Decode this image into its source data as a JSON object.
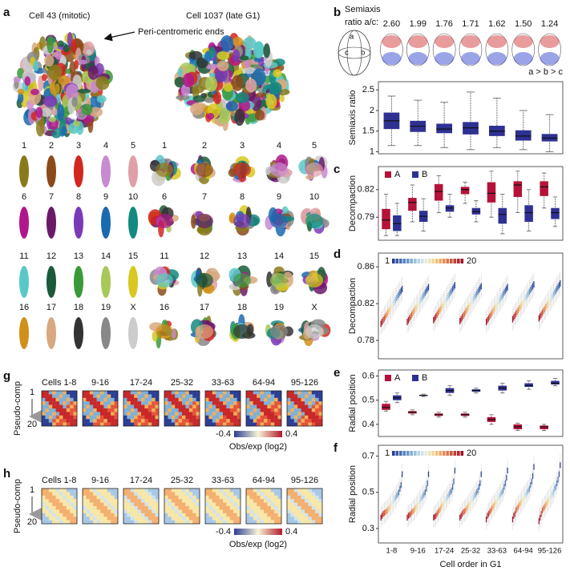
{
  "figure": {
    "panel_letters": [
      "a",
      "b",
      "c",
      "d",
      "e",
      "f",
      "g",
      "h"
    ],
    "a": {
      "left_title": "Cell 43 (mitotic)",
      "right_title": "Cell 1037 (late G1)",
      "annotation": "Peri-centromeric ends",
      "chromosome_labels": [
        "1",
        "2",
        "3",
        "4",
        "5",
        "6",
        "7",
        "8",
        "9",
        "10",
        "11",
        "12",
        "13",
        "14",
        "15",
        "16",
        "17",
        "18",
        "19",
        "X"
      ]
    },
    "b": {
      "label_lines": [
        "Semiaxis",
        "ratio a/c:"
      ],
      "ratios": [
        {
          "value": 2.6,
          "label": "2.60"
        },
        1.99,
        1.76,
        1.71,
        1.62,
        {
          "value": 1.5,
          "label": "1.50"
        },
        1.24
      ],
      "axis_labels": [
        "a",
        "b",
        "c"
      ],
      "order_note": "a > b > c"
    },
    "g": {
      "columns": [
        "Cells 1-8",
        "9-16",
        "17-24",
        "25-32",
        "33-63",
        "64-94",
        "95-126"
      ],
      "y_label": "Pseudo-comp",
      "y_ends": [
        1,
        20
      ],
      "colorbar_ticks": [
        -0.4,
        0.4
      ],
      "colorbar_label": "Obs/exp (log2)"
    },
    "h": {
      "columns": [
        "Cells 1-8",
        "9-16",
        "17-24",
        "25-32",
        "33-63",
        "64-94",
        "95-126"
      ],
      "y_label": "Pseudo-comp",
      "y_ends": [
        1,
        20
      ],
      "colorbar_ticks": [
        -0.4,
        0.4
      ],
      "colorbar_label": "Obs/exp (log2)"
    }
  },
  "chart_data": [
    {
      "type": "box",
      "y_label": "Semiaxis  ratio",
      "ylim": [
        0.95,
        2.7
      ],
      "yticks": [
        1,
        1.5,
        2,
        2.5
      ],
      "series": [
        {
          "color": "#2e3192",
          "whislo": [
            1.15,
            1.15,
            1.1,
            1.05,
            1.1,
            1.05,
            1.0
          ],
          "q1": [
            1.55,
            1.48,
            1.45,
            1.42,
            1.38,
            1.27,
            1.25
          ],
          "med": [
            1.75,
            1.62,
            1.55,
            1.58,
            1.5,
            1.38,
            1.33
          ],
          "q3": [
            1.95,
            1.75,
            1.68,
            1.72,
            1.63,
            1.52,
            1.43
          ],
          "whishi": [
            2.35,
            2.25,
            2.2,
            2.45,
            2.3,
            2.0,
            1.9
          ]
        }
      ]
    },
    {
      "type": "box",
      "y_label": "Decompaction",
      "ylim": [
        0.765,
        0.845
      ],
      "yticks": [
        0.79,
        0.82
      ],
      "legend": "top-left",
      "series": [
        {
          "name": "A",
          "color": "#b5123a",
          "whislo": [
            0.77,
            0.785,
            0.795,
            0.805,
            0.79,
            0.795,
            0.8
          ],
          "q1": [
            0.777,
            0.797,
            0.808,
            0.815,
            0.806,
            0.812,
            0.813
          ],
          "med": [
            0.787,
            0.806,
            0.818,
            0.82,
            0.816,
            0.825,
            0.823
          ],
          "q3": [
            0.799,
            0.811,
            0.826,
            0.823,
            0.828,
            0.829,
            0.829
          ],
          "whishi": [
            0.815,
            0.825,
            0.835,
            0.828,
            0.84,
            0.84,
            0.838
          ]
        },
        {
          "name": "B",
          "color": "#2e3192",
          "whislo": [
            0.77,
            0.775,
            0.79,
            0.785,
            0.772,
            0.775,
            0.78
          ],
          "q1": [
            0.775,
            0.785,
            0.796,
            0.793,
            0.783,
            0.785,
            0.788
          ],
          "med": [
            0.783,
            0.791,
            0.8,
            0.796,
            0.793,
            0.795,
            0.795
          ],
          "q3": [
            0.792,
            0.797,
            0.803,
            0.8,
            0.8,
            0.803,
            0.8
          ],
          "whishi": [
            0.805,
            0.81,
            0.815,
            0.808,
            0.815,
            0.82,
            0.812
          ]
        }
      ]
    },
    {
      "type": "box-ramp",
      "y_label": "Decompaction",
      "ylim": [
        0.76,
        0.875
      ],
      "yticks": [
        0.78,
        0.82,
        0.86
      ],
      "legend": "top-left",
      "ramp_labels": [
        1,
        20
      ],
      "colors": [
        "#2c3e94",
        "#3a56a5",
        "#4a6db0",
        "#5a84bc",
        "#6e99c6",
        "#86aed0",
        "#a0c2da",
        "#bad4e3",
        "#d2e3ea",
        "#e6ecdc",
        "#efe6bb",
        "#f2d79a",
        "#f1c27f",
        "#eeaa67",
        "#e79057",
        "#de754a",
        "#d05a3f",
        "#c14036",
        "#b0282f",
        "#9d1328"
      ],
      "values": [
        [
          0.836,
          0.834,
          0.832,
          0.83,
          0.828,
          0.826,
          0.824,
          0.822,
          0.82,
          0.818,
          0.816,
          0.814,
          0.812,
          0.81,
          0.808,
          0.806,
          0.804,
          0.802,
          0.8,
          0.798
        ],
        [
          0.838,
          0.836,
          0.834,
          0.832,
          0.83,
          0.828,
          0.826,
          0.824,
          0.822,
          0.82,
          0.818,
          0.816,
          0.814,
          0.812,
          0.81,
          0.808,
          0.806,
          0.804,
          0.802,
          0.8
        ],
        [
          0.84,
          0.838,
          0.836,
          0.834,
          0.832,
          0.83,
          0.828,
          0.826,
          0.824,
          0.822,
          0.82,
          0.818,
          0.816,
          0.814,
          0.812,
          0.81,
          0.808,
          0.806,
          0.804,
          0.802
        ],
        [
          0.839,
          0.837,
          0.835,
          0.833,
          0.831,
          0.829,
          0.827,
          0.825,
          0.823,
          0.821,
          0.819,
          0.817,
          0.815,
          0.813,
          0.811,
          0.809,
          0.807,
          0.805,
          0.803,
          0.801
        ],
        [
          0.838,
          0.836,
          0.834,
          0.832,
          0.83,
          0.828,
          0.826,
          0.824,
          0.822,
          0.82,
          0.818,
          0.816,
          0.814,
          0.812,
          0.81,
          0.808,
          0.806,
          0.804,
          0.802,
          0.8
        ],
        [
          0.841,
          0.839,
          0.837,
          0.835,
          0.833,
          0.831,
          0.829,
          0.827,
          0.825,
          0.823,
          0.821,
          0.819,
          0.817,
          0.815,
          0.813,
          0.811,
          0.809,
          0.807,
          0.805,
          0.803
        ],
        [
          0.842,
          0.84,
          0.838,
          0.836,
          0.834,
          0.832,
          0.83,
          0.828,
          0.826,
          0.824,
          0.822,
          0.82,
          0.818,
          0.816,
          0.814,
          0.812,
          0.81,
          0.808,
          0.806,
          0.804
        ]
      ]
    },
    {
      "type": "box",
      "y_label": "Radial position",
      "ylim": [
        0.35,
        0.625
      ],
      "yticks": [
        0.4,
        0.5,
        0.6
      ],
      "legend": "top-left",
      "series": [
        {
          "name": "A",
          "color": "#b5123a",
          "whislo": [
            0.455,
            0.44,
            0.43,
            0.43,
            0.4,
            0.375,
            0.375
          ],
          "q1": [
            0.46,
            0.445,
            0.435,
            0.435,
            0.41,
            0.38,
            0.38
          ],
          "med": [
            0.47,
            0.45,
            0.44,
            0.44,
            0.42,
            0.39,
            0.39
          ],
          "q3": [
            0.485,
            0.455,
            0.445,
            0.445,
            0.43,
            0.4,
            0.395
          ],
          "whishi": [
            0.495,
            0.46,
            0.45,
            0.45,
            0.44,
            0.405,
            0.4
          ]
        },
        {
          "name": "B",
          "color": "#2e3192",
          "whislo": [
            0.49,
            0.515,
            0.52,
            0.53,
            0.53,
            0.545,
            0.56
          ],
          "q1": [
            0.5,
            0.518,
            0.53,
            0.535,
            0.54,
            0.555,
            0.565
          ],
          "med": [
            0.51,
            0.52,
            0.54,
            0.54,
            0.55,
            0.56,
            0.57
          ],
          "q3": [
            0.52,
            0.522,
            0.55,
            0.545,
            0.56,
            0.57,
            0.58
          ],
          "whishi": [
            0.53,
            0.525,
            0.56,
            0.55,
            0.57,
            0.58,
            0.59
          ]
        }
      ]
    },
    {
      "type": "box-ramp",
      "y_label": "Radial position",
      "x_label": "Cell order in G1",
      "ylim": [
        0.22,
        0.76
      ],
      "yticks": [
        0.3,
        0.5,
        0.7
      ],
      "legend": "top-left",
      "ramp_labels": [
        1,
        20
      ],
      "categories": [
        "1-8",
        "9-16",
        "17-24",
        "25-32",
        "33-63",
        "64-94",
        "95-126"
      ],
      "colors": [
        "#2c3e94",
        "#3a56a5",
        "#4a6db0",
        "#5a84bc",
        "#6e99c6",
        "#86aed0",
        "#a0c2da",
        "#bad4e3",
        "#d2e3ea",
        "#e6ecdc",
        "#efe6bb",
        "#f2d79a",
        "#f1c27f",
        "#eeaa67",
        "#e79057",
        "#de754a",
        "#d05a3f",
        "#c14036",
        "#b0282f",
        "#9d1328"
      ],
      "values": [
        [
          0.6,
          0.54,
          0.52,
          0.5,
          0.49,
          0.48,
          0.47,
          0.46,
          0.45,
          0.44,
          0.43,
          0.42,
          0.41,
          0.4,
          0.395,
          0.39,
          0.385,
          0.38,
          0.37,
          0.36
        ],
        [
          0.6,
          0.55,
          0.52,
          0.5,
          0.49,
          0.48,
          0.47,
          0.46,
          0.45,
          0.44,
          0.43,
          0.42,
          0.41,
          0.4,
          0.395,
          0.39,
          0.38,
          0.375,
          0.37,
          0.36
        ],
        [
          0.62,
          0.56,
          0.53,
          0.51,
          0.5,
          0.49,
          0.48,
          0.47,
          0.46,
          0.45,
          0.44,
          0.43,
          0.42,
          0.41,
          0.4,
          0.39,
          0.38,
          0.37,
          0.365,
          0.36
        ],
        [
          0.6,
          0.55,
          0.53,
          0.51,
          0.5,
          0.49,
          0.48,
          0.47,
          0.46,
          0.45,
          0.44,
          0.43,
          0.42,
          0.41,
          0.4,
          0.395,
          0.39,
          0.38,
          0.37,
          0.36
        ],
        [
          0.62,
          0.58,
          0.55,
          0.53,
          0.51,
          0.5,
          0.49,
          0.48,
          0.47,
          0.46,
          0.45,
          0.44,
          0.43,
          0.42,
          0.41,
          0.4,
          0.39,
          0.38,
          0.37,
          0.35
        ],
        [
          0.64,
          0.59,
          0.56,
          0.54,
          0.52,
          0.51,
          0.5,
          0.49,
          0.48,
          0.47,
          0.46,
          0.45,
          0.44,
          0.43,
          0.42,
          0.41,
          0.4,
          0.38,
          0.37,
          0.35
        ],
        [
          0.65,
          0.6,
          0.57,
          0.55,
          0.53,
          0.52,
          0.5,
          0.49,
          0.48,
          0.47,
          0.46,
          0.45,
          0.44,
          0.43,
          0.42,
          0.41,
          0.4,
          0.38,
          0.36,
          0.34
        ]
      ]
    }
  ]
}
